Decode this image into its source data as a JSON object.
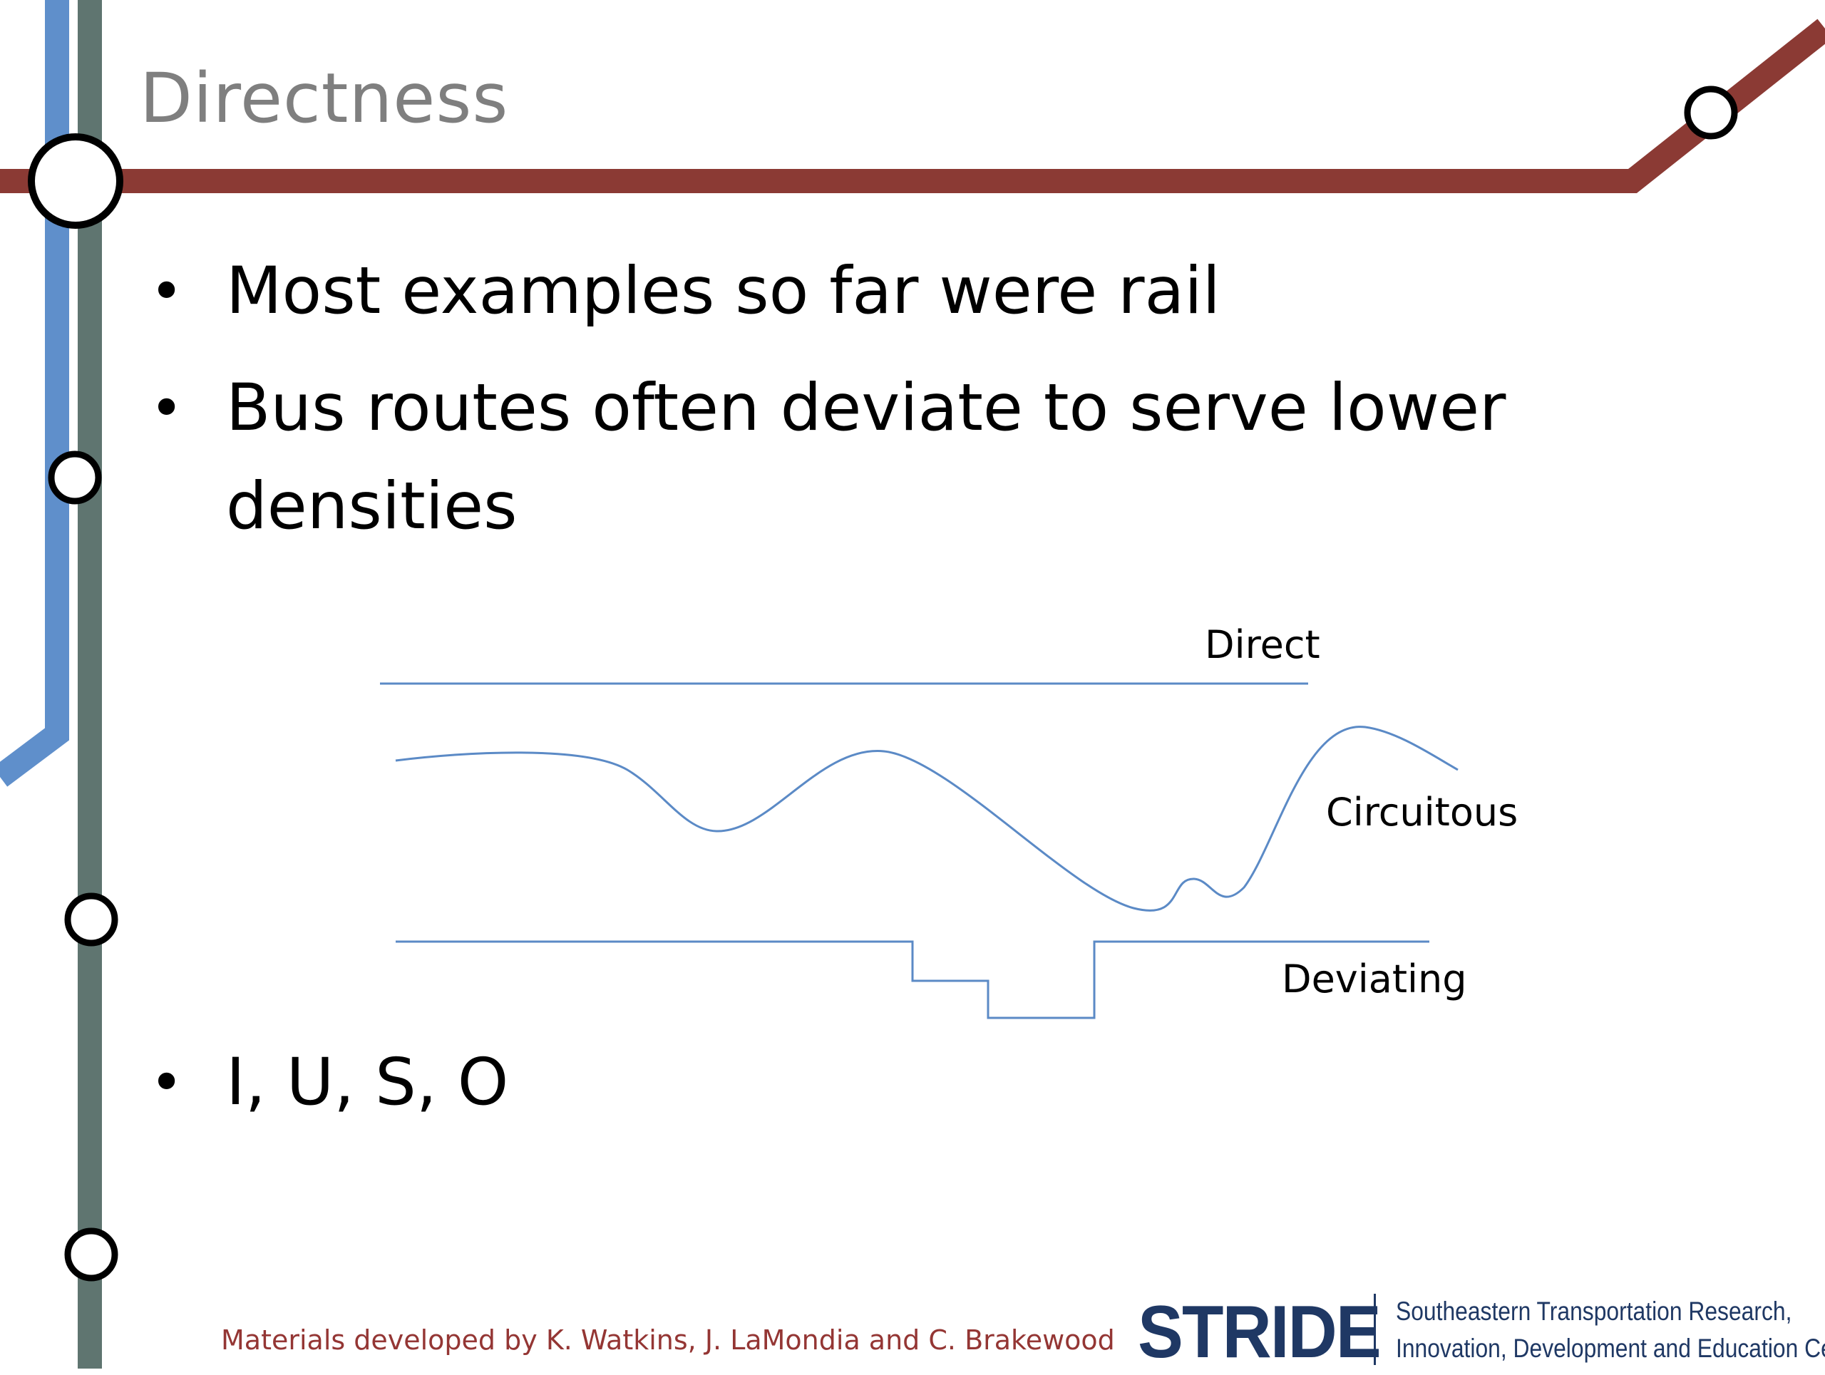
{
  "slide": {
    "title": "Directness",
    "bullets": [
      "Most examples so far were rail",
      "Bus routes often deviate to serve lower densities"
    ],
    "bullet_after_diagram": "I, U, S, O",
    "bullet_symbol": "•"
  },
  "diagram": {
    "labels": {
      "direct": "Direct",
      "circuitous": "Circuitous",
      "deviating": "Deviating"
    },
    "line_color": "#5b8ac6"
  },
  "footer": {
    "credit": "Materials developed by K. Watkins, J. LaMondia and C. Brakewood",
    "logo_name": "STRIDE",
    "logo_line1": "Southeastern Transportation Research,",
    "logo_line2": "Innovation, Development and Education Center"
  },
  "colors": {
    "title": "#7f7f7f",
    "red_line": "#8b3a34",
    "blue_line": "#5f8fcb",
    "gray_line": "#5f7570",
    "credit": "#943634",
    "logo": "#1f3864"
  }
}
